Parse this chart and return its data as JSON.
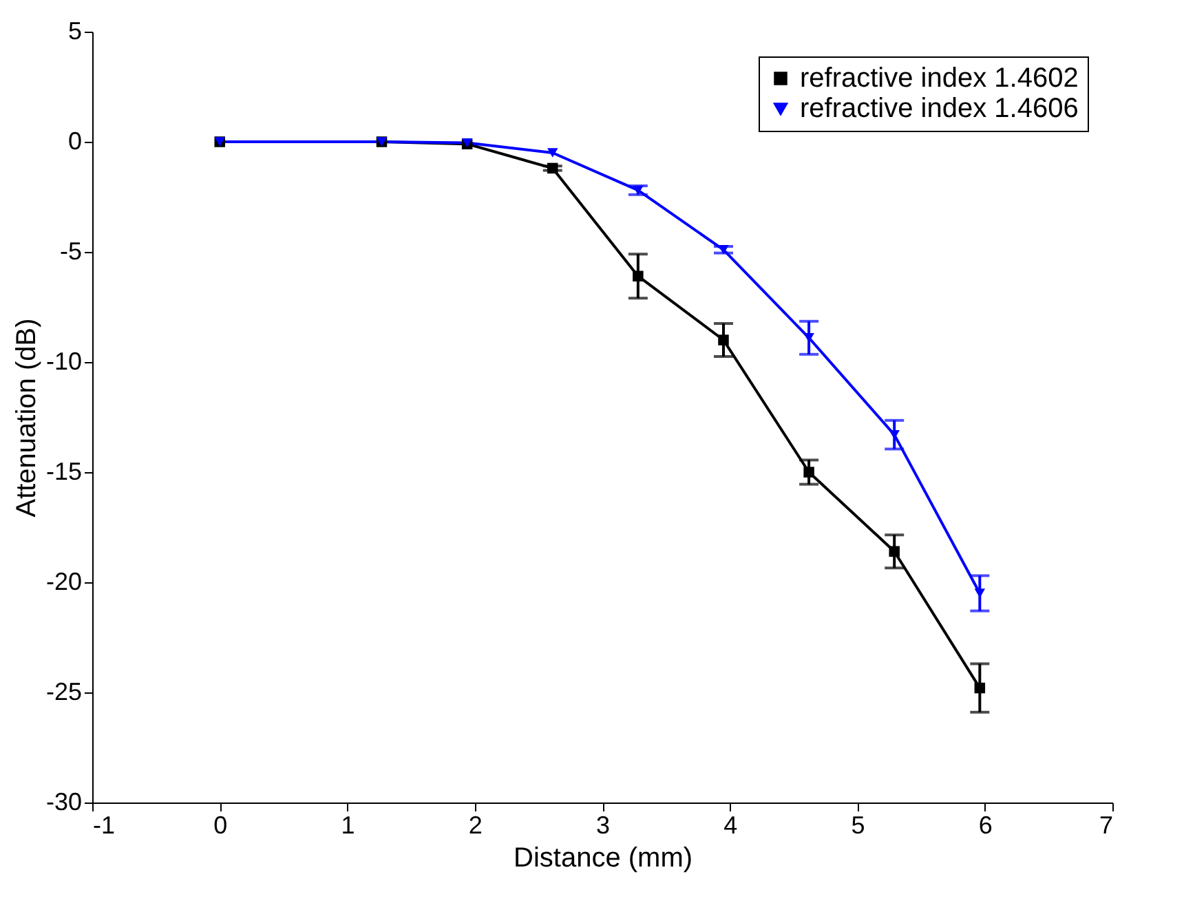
{
  "chart_data": {
    "type": "line",
    "xlabel": "Distance (mm)",
    "ylabel": "Attenuation (dB)",
    "x": [
      0,
      1.27,
      1.94,
      2.61,
      3.28,
      3.95,
      4.62,
      5.29,
      5.96
    ],
    "xlim": [
      -1,
      7
    ],
    "xticks": [
      -1,
      0,
      1,
      2,
      3,
      4,
      5,
      6,
      7
    ],
    "ylim": [
      -30,
      5
    ],
    "yticks": [
      -30,
      -25,
      -20,
      -15,
      -10,
      -5,
      0,
      5
    ],
    "legend": "top right",
    "grid": false,
    "series": [
      {
        "name": "refractive index 1.4602",
        "color": "#000000",
        "marker": "square",
        "values": [
          0,
          0,
          -0.1,
          -1.2,
          -6.1,
          -9.0,
          -15.0,
          -18.6,
          -24.8
        ],
        "errors": [
          null,
          null,
          null,
          0.1,
          1.0,
          0.75,
          0.55,
          0.75,
          1.1
        ]
      },
      {
        "name": "refractive index 1.4606",
        "color": "#0000ff",
        "marker": "triangle",
        "values": [
          0,
          0,
          -0.05,
          -0.5,
          -2.2,
          -4.9,
          -8.9,
          -13.3,
          -20.5
        ],
        "errors": [
          null,
          null,
          null,
          null,
          0.2,
          0.15,
          0.75,
          0.65,
          0.8
        ]
      }
    ]
  }
}
